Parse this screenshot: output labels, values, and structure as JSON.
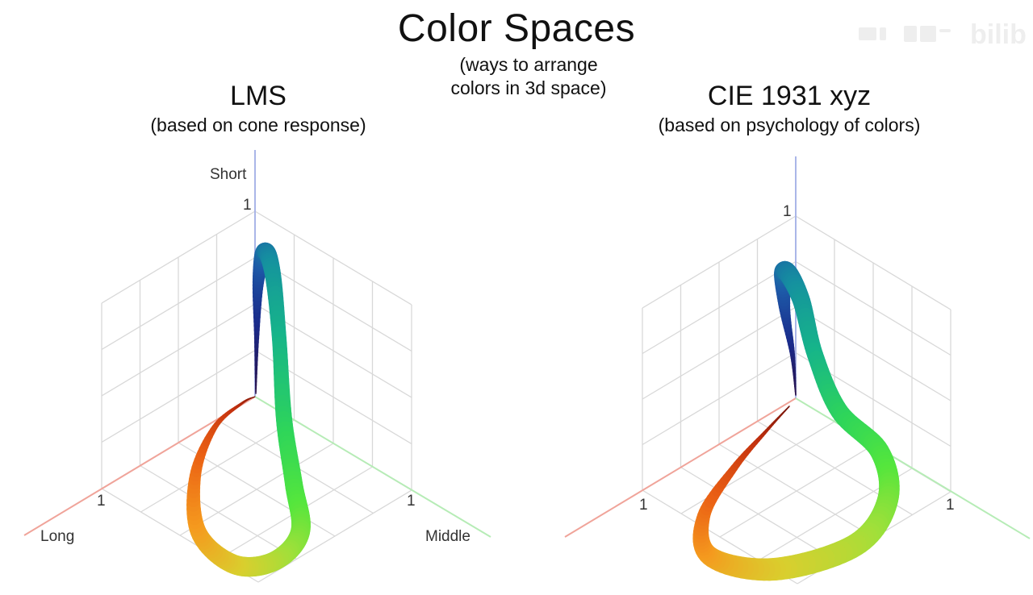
{
  "header": {
    "title": "Color Spaces",
    "subtitle_line1": "(ways to arrange",
    "subtitle_line2": "colors in 3d space)"
  },
  "panels": [
    {
      "title": "LMS",
      "subtitle": "(based on cone response)",
      "axes": {
        "vertical": "Short",
        "left": "Long",
        "right": "Middle"
      },
      "ticks": {
        "vertical": "1",
        "left": "1",
        "right": "1"
      }
    },
    {
      "title": "CIE 1931 xyz",
      "subtitle": "(based on psychology of colors)",
      "axes": {
        "vertical": "",
        "left": "",
        "right": ""
      },
      "ticks": {
        "vertical": "1",
        "left": "1",
        "right": "1"
      }
    }
  ],
  "colors": {
    "grid": "#d8d8d8",
    "axis_vertical": "#aab6e8",
    "axis_left": "#f0a49a",
    "axis_right": "#b6ecb6",
    "spectrum": [
      "#2a0f44",
      "#1a2a8a",
      "#1d5aa8",
      "#158fa0",
      "#16b48a",
      "#2ed55a",
      "#55e63c",
      "#9fe03a",
      "#d9cf2e",
      "#f59a1e",
      "#ea5f14",
      "#c2300e",
      "#6e1008"
    ]
  }
}
